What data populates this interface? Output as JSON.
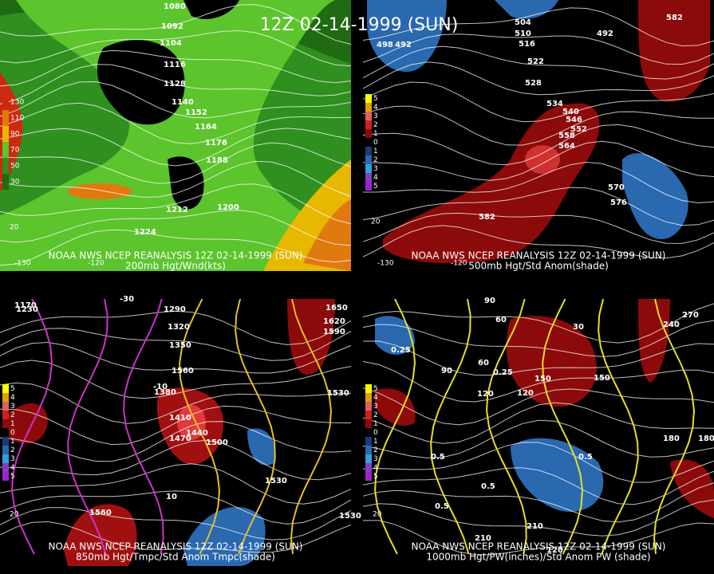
{
  "title": "12Z 02-14-1999 (SUN)",
  "panels": [
    {
      "caption": [
        "NOAA NWS NCEP REANALYSIS 12Z 02-14-1999 (SUN)",
        "200mb Hgt/Wnd(kts)"
      ],
      "legend": [
        "130",
        "110",
        "90",
        "70",
        "50",
        "30"
      ],
      "contour_labels": [
        "1080",
        "1092",
        "1104",
        "1116",
        "1128",
        "1140",
        "1152",
        "1164",
        "1176",
        "1188",
        "1200",
        "1212",
        "1224"
      ],
      "axis_labels": [
        "-130",
        "-120",
        "20"
      ]
    },
    {
      "caption": [
        "NOAA NWS NCEP REANALYSIS 12Z 02-14-1999 (SUN)",
        "500mb Hgt/Std Anom(shade)"
      ],
      "legend": [
        "5",
        "4",
        "3",
        "2",
        "1",
        "0",
        "1",
        "2",
        "3",
        "4",
        "5"
      ],
      "contour_labels": [
        "492",
        "498",
        "504",
        "510",
        "516",
        "522",
        "528",
        "534",
        "540",
        "546",
        "552",
        "558",
        "564",
        "570",
        "576",
        "582",
        "492",
        "582"
      ],
      "axis_labels": [
        "-130",
        "-120",
        "20"
      ]
    },
    {
      "caption": [
        "NOAA NWS NCEP REANALYSIS 12Z 02-14-1999 (SUN)",
        "850mb Hgt/Tmpc/Std Anom Tmpc(shade)"
      ],
      "legend": [
        "5",
        "4",
        "3",
        "2",
        "1",
        "0",
        "1",
        "2",
        "3",
        "4",
        "5"
      ],
      "contour_labels": [
        "1170",
        "1230",
        "1290",
        "1320",
        "1350",
        "1380",
        "1410",
        "1440",
        "1470",
        "1500",
        "1530",
        "1560",
        "1590",
        "1620",
        "1650",
        "1560",
        "1530",
        "1530",
        "-10",
        "10",
        "-30"
      ],
      "axis_labels": [
        "20"
      ]
    },
    {
      "caption": [
        "NOAA NWS NCEP REANALYSIS 12Z 02-14-1999 (SUN)",
        "1000mb Hgt/PW(inches)/Std Anom PW (shade)"
      ],
      "legend": [
        "5",
        "4",
        "3",
        "2",
        "1",
        "0",
        "1",
        "2",
        "3",
        "4",
        "5"
      ],
      "contour_labels": [
        "90",
        "60",
        "30",
        "60",
        "90",
        "120",
        "150",
        "180",
        "210",
        "240",
        "270",
        "120",
        "150",
        "180",
        "0.25",
        "0.25",
        "0.5",
        "0.5",
        "0.5",
        "0.5",
        "120",
        "210"
      ],
      "axis_labels": [
        "20"
      ]
    }
  ]
}
